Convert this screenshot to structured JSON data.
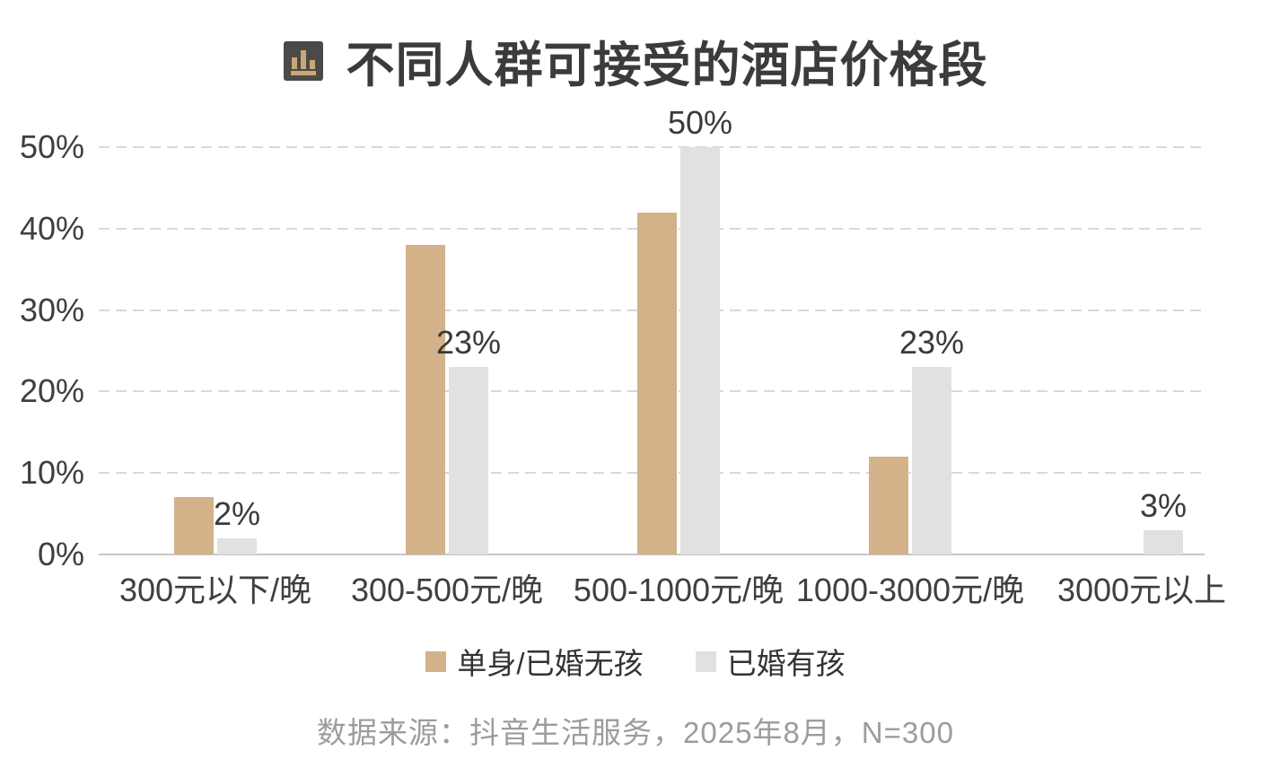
{
  "title": {
    "text": "不同人群可接受的酒店价格段"
  },
  "chart_data": {
    "type": "bar",
    "title": "不同人群可接受的酒店价格段",
    "categories": [
      "300元以下/晚",
      "300-500元/晚",
      "500-1000元/晚",
      "1000-3000元/晚",
      "3000元以上"
    ],
    "series": [
      {
        "name": "单身/已婚无孩",
        "color": "#d3b289",
        "values": [
          7,
          38,
          42,
          12,
          0
        ],
        "value_labels": [
          "",
          "",
          "",
          "",
          ""
        ]
      },
      {
        "name": "已婚有孩",
        "color": "#e1e1e1",
        "values": [
          2,
          23,
          50,
          23,
          3
        ],
        "value_labels": [
          "2%",
          "23%",
          "50%",
          "23%",
          "3%"
        ]
      }
    ],
    "yaxis": {
      "tick_labels": [
        "0%",
        "10%",
        "20%",
        "30%",
        "40%",
        "50%"
      ],
      "tick_values": [
        0,
        10,
        20,
        30,
        40,
        50
      ],
      "min": 0,
      "max": 50,
      "grid": "dashed"
    },
    "legend_position": "bottom"
  },
  "source": {
    "text": "数据来源：抖音生活服务，2025年8月，N=300"
  },
  "colors": {
    "bar_primary": "#d3b289",
    "bar_secondary": "#e1e1e1",
    "gridline": "#d9d9d9",
    "axis_line": "#c6c6c6",
    "text_dark": "#3b3b3b",
    "source_text": "#9c9c9c",
    "icon_bg": "#4b4a46",
    "icon_bars": "#c9a878"
  }
}
